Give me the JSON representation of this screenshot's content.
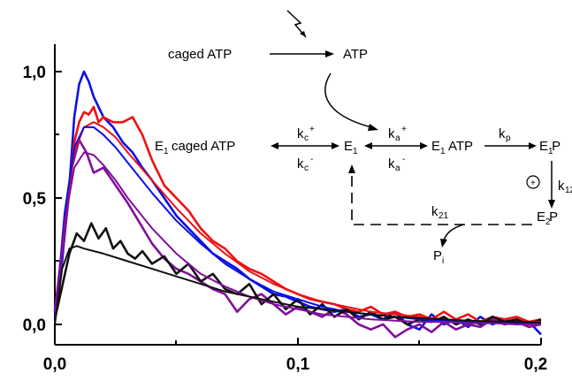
{
  "chart_data": {
    "type": "line",
    "x_ticks": [
      "0,0",
      "0,1",
      "0,2"
    ],
    "y_ticks": [
      "0,0",
      "0,5",
      "1,0"
    ],
    "xlim": [
      0.0,
      0.2
    ],
    "ylim": [
      0.0,
      1.0
    ],
    "grid": false,
    "series": [
      {
        "color": "#0a10e8",
        "kind": "trace",
        "points": [
          [
            0.0,
            0.06
          ],
          [
            0.003,
            0.25
          ],
          [
            0.006,
            0.55
          ],
          [
            0.008,
            0.82
          ],
          [
            0.01,
            0.95
          ],
          [
            0.012,
            1.0
          ],
          [
            0.014,
            0.96
          ],
          [
            0.016,
            0.9
          ],
          [
            0.018,
            0.86
          ],
          [
            0.02,
            0.82
          ],
          [
            0.024,
            0.78
          ],
          [
            0.028,
            0.72
          ],
          [
            0.032,
            0.68
          ],
          [
            0.036,
            0.62
          ],
          [
            0.04,
            0.57
          ],
          [
            0.045,
            0.5
          ],
          [
            0.05,
            0.43
          ],
          [
            0.055,
            0.38
          ],
          [
            0.06,
            0.33
          ],
          [
            0.065,
            0.28
          ],
          [
            0.07,
            0.25
          ],
          [
            0.075,
            0.22
          ],
          [
            0.08,
            0.18
          ],
          [
            0.085,
            0.15
          ],
          [
            0.09,
            0.12
          ],
          [
            0.095,
            0.11
          ],
          [
            0.1,
            0.09
          ],
          [
            0.105,
            0.07
          ],
          [
            0.11,
            0.06
          ],
          [
            0.115,
            0.05
          ],
          [
            0.12,
            0.06
          ],
          [
            0.125,
            0.03
          ],
          [
            0.13,
            0.04
          ],
          [
            0.135,
            0.02
          ],
          [
            0.14,
            0.05
          ],
          [
            0.145,
            0.0
          ],
          [
            0.15,
            -0.02
          ],
          [
            0.155,
            0.04
          ],
          [
            0.16,
            0.0
          ],
          [
            0.165,
            0.02
          ],
          [
            0.17,
            -0.01
          ],
          [
            0.175,
            0.03
          ],
          [
            0.18,
            0.0
          ],
          [
            0.185,
            0.02
          ],
          [
            0.19,
            0.0
          ],
          [
            0.195,
            0.01
          ],
          [
            0.2,
            -0.04
          ]
        ]
      },
      {
        "color": "#ee1111",
        "kind": "trace",
        "points": [
          [
            0.0,
            0.05
          ],
          [
            0.003,
            0.3
          ],
          [
            0.006,
            0.55
          ],
          [
            0.008,
            0.72
          ],
          [
            0.01,
            0.8
          ],
          [
            0.012,
            0.84
          ],
          [
            0.014,
            0.83
          ],
          [
            0.016,
            0.86
          ],
          [
            0.018,
            0.8
          ],
          [
            0.02,
            0.82
          ],
          [
            0.024,
            0.8
          ],
          [
            0.028,
            0.8
          ],
          [
            0.032,
            0.82
          ],
          [
            0.036,
            0.75
          ],
          [
            0.04,
            0.65
          ],
          [
            0.045,
            0.55
          ],
          [
            0.05,
            0.5
          ],
          [
            0.055,
            0.45
          ],
          [
            0.06,
            0.38
          ],
          [
            0.065,
            0.33
          ],
          [
            0.07,
            0.3
          ],
          [
            0.075,
            0.25
          ],
          [
            0.08,
            0.22
          ],
          [
            0.085,
            0.2
          ],
          [
            0.09,
            0.17
          ],
          [
            0.095,
            0.14
          ],
          [
            0.1,
            0.12
          ],
          [
            0.105,
            0.1
          ],
          [
            0.11,
            0.09
          ],
          [
            0.115,
            0.08
          ],
          [
            0.12,
            0.06
          ],
          [
            0.125,
            0.05
          ],
          [
            0.13,
            0.07
          ],
          [
            0.135,
            0.04
          ],
          [
            0.14,
            0.05
          ],
          [
            0.145,
            0.03
          ],
          [
            0.15,
            0.04
          ],
          [
            0.155,
            0.02
          ],
          [
            0.16,
            0.05
          ],
          [
            0.165,
            0.02
          ],
          [
            0.17,
            0.04
          ],
          [
            0.175,
            0.01
          ],
          [
            0.18,
            0.03
          ],
          [
            0.185,
            0.02
          ],
          [
            0.19,
            0.03
          ],
          [
            0.195,
            0.01
          ],
          [
            0.2,
            0.02
          ]
        ]
      },
      {
        "color": "#800f9c",
        "kind": "trace",
        "points": [
          [
            0.0,
            0.05
          ],
          [
            0.004,
            0.35
          ],
          [
            0.007,
            0.62
          ],
          [
            0.01,
            0.73
          ],
          [
            0.013,
            0.68
          ],
          [
            0.016,
            0.6
          ],
          [
            0.02,
            0.62
          ],
          [
            0.025,
            0.55
          ],
          [
            0.03,
            0.48
          ],
          [
            0.035,
            0.4
          ],
          [
            0.04,
            0.32
          ],
          [
            0.045,
            0.26
          ],
          [
            0.05,
            0.22
          ],
          [
            0.055,
            0.2
          ],
          [
            0.06,
            0.17
          ],
          [
            0.065,
            0.14
          ],
          [
            0.07,
            0.12
          ],
          [
            0.075,
            0.05
          ],
          [
            0.08,
            0.1
          ],
          [
            0.085,
            0.12
          ],
          [
            0.09,
            0.08
          ],
          [
            0.095,
            0.04
          ],
          [
            0.1,
            0.07
          ],
          [
            0.105,
            0.05
          ],
          [
            0.11,
            0.03
          ],
          [
            0.115,
            0.06
          ],
          [
            0.12,
            0.04
          ],
          [
            0.125,
            0.0
          ],
          [
            0.13,
            -0.02
          ],
          [
            0.135,
            0.0
          ],
          [
            0.14,
            -0.05
          ],
          [
            0.145,
            -0.02
          ],
          [
            0.15,
            0.0
          ],
          [
            0.155,
            -0.03
          ],
          [
            0.16,
            0.01
          ],
          [
            0.165,
            -0.02
          ],
          [
            0.17,
            0.0
          ],
          [
            0.175,
            -0.01
          ],
          [
            0.18,
            0.02
          ],
          [
            0.185,
            0.0
          ],
          [
            0.19,
            0.01
          ],
          [
            0.195,
            -0.01
          ],
          [
            0.2,
            0.0
          ]
        ]
      },
      {
        "color": "#111111",
        "kind": "trace",
        "points": [
          [
            0.0,
            0.02
          ],
          [
            0.003,
            0.15
          ],
          [
            0.006,
            0.28
          ],
          [
            0.009,
            0.36
          ],
          [
            0.012,
            0.33
          ],
          [
            0.015,
            0.4
          ],
          [
            0.018,
            0.34
          ],
          [
            0.021,
            0.38
          ],
          [
            0.024,
            0.3
          ],
          [
            0.027,
            0.33
          ],
          [
            0.03,
            0.28
          ],
          [
            0.033,
            0.26
          ],
          [
            0.036,
            0.29
          ],
          [
            0.04,
            0.24
          ],
          [
            0.045,
            0.27
          ],
          [
            0.05,
            0.2
          ],
          [
            0.055,
            0.24
          ],
          [
            0.06,
            0.17
          ],
          [
            0.065,
            0.2
          ],
          [
            0.07,
            0.14
          ],
          [
            0.075,
            0.12
          ],
          [
            0.08,
            0.16
          ],
          [
            0.085,
            0.08
          ],
          [
            0.09,
            0.12
          ],
          [
            0.095,
            0.06
          ],
          [
            0.1,
            0.1
          ],
          [
            0.105,
            0.04
          ],
          [
            0.11,
            0.08
          ],
          [
            0.115,
            0.03
          ],
          [
            0.12,
            0.06
          ],
          [
            0.125,
            0.02
          ],
          [
            0.13,
            0.05
          ],
          [
            0.135,
            0.02
          ],
          [
            0.14,
            0.03
          ],
          [
            0.145,
            0.0
          ],
          [
            0.15,
            0.02
          ],
          [
            0.155,
            0.01
          ],
          [
            0.16,
            0.03
          ],
          [
            0.165,
            0.0
          ],
          [
            0.17,
            0.02
          ],
          [
            0.175,
            0.0
          ],
          [
            0.18,
            0.03
          ],
          [
            0.185,
            0.01
          ],
          [
            0.19,
            0.02
          ],
          [
            0.195,
            0.0
          ],
          [
            0.2,
            0.02
          ]
        ]
      },
      {
        "color": "#ee1111",
        "kind": "fit",
        "points": [
          [
            0.0,
            0.0
          ],
          [
            0.004,
            0.42
          ],
          [
            0.008,
            0.68
          ],
          [
            0.012,
            0.78
          ],
          [
            0.016,
            0.8
          ],
          [
            0.02,
            0.78
          ],
          [
            0.025,
            0.74
          ],
          [
            0.03,
            0.68
          ],
          [
            0.04,
            0.57
          ],
          [
            0.05,
            0.46
          ],
          [
            0.06,
            0.36
          ],
          [
            0.07,
            0.28
          ],
          [
            0.08,
            0.21
          ],
          [
            0.09,
            0.16
          ],
          [
            0.1,
            0.12
          ],
          [
            0.11,
            0.09
          ],
          [
            0.12,
            0.07
          ],
          [
            0.13,
            0.05
          ],
          [
            0.14,
            0.04
          ],
          [
            0.15,
            0.03
          ],
          [
            0.16,
            0.02
          ],
          [
            0.17,
            0.015
          ],
          [
            0.18,
            0.01
          ],
          [
            0.19,
            0.01
          ],
          [
            0.2,
            0.01
          ]
        ]
      },
      {
        "color": "#0a10e8",
        "kind": "fit",
        "points": [
          [
            0.0,
            0.0
          ],
          [
            0.004,
            0.44
          ],
          [
            0.008,
            0.7
          ],
          [
            0.012,
            0.78
          ],
          [
            0.016,
            0.78
          ],
          [
            0.02,
            0.75
          ],
          [
            0.025,
            0.7
          ],
          [
            0.03,
            0.64
          ],
          [
            0.04,
            0.52
          ],
          [
            0.05,
            0.41
          ],
          [
            0.06,
            0.32
          ],
          [
            0.07,
            0.24
          ],
          [
            0.08,
            0.18
          ],
          [
            0.09,
            0.13
          ],
          [
            0.1,
            0.1
          ],
          [
            0.11,
            0.07
          ],
          [
            0.12,
            0.05
          ],
          [
            0.13,
            0.04
          ],
          [
            0.14,
            0.03
          ],
          [
            0.15,
            0.02
          ],
          [
            0.16,
            0.015
          ],
          [
            0.17,
            0.01
          ],
          [
            0.18,
            0.01
          ],
          [
            0.19,
            0.005
          ],
          [
            0.2,
            0.005
          ]
        ]
      },
      {
        "color": "#800f9c",
        "kind": "fit",
        "points": [
          [
            0.0,
            0.0
          ],
          [
            0.004,
            0.4
          ],
          [
            0.008,
            0.62
          ],
          [
            0.012,
            0.68
          ],
          [
            0.016,
            0.67
          ],
          [
            0.02,
            0.63
          ],
          [
            0.025,
            0.57
          ],
          [
            0.03,
            0.5
          ],
          [
            0.04,
            0.38
          ],
          [
            0.05,
            0.28
          ],
          [
            0.06,
            0.2
          ],
          [
            0.07,
            0.15
          ],
          [
            0.08,
            0.11
          ],
          [
            0.09,
            0.08
          ],
          [
            0.1,
            0.06
          ],
          [
            0.11,
            0.04
          ],
          [
            0.12,
            0.03
          ],
          [
            0.13,
            0.02
          ],
          [
            0.14,
            0.015
          ],
          [
            0.15,
            0.01
          ],
          [
            0.16,
            0.01
          ],
          [
            0.17,
            0.005
          ],
          [
            0.18,
            0.005
          ],
          [
            0.19,
            0.0
          ],
          [
            0.2,
            0.0
          ]
        ]
      },
      {
        "color": "#111111",
        "kind": "fit",
        "points": [
          [
            0.0,
            0.0
          ],
          [
            0.003,
            0.22
          ],
          [
            0.006,
            0.3
          ],
          [
            0.009,
            0.31
          ],
          [
            0.012,
            0.3
          ],
          [
            0.02,
            0.28
          ],
          [
            0.03,
            0.25
          ],
          [
            0.04,
            0.22
          ],
          [
            0.05,
            0.19
          ],
          [
            0.06,
            0.16
          ],
          [
            0.07,
            0.13
          ],
          [
            0.08,
            0.11
          ],
          [
            0.09,
            0.09
          ],
          [
            0.1,
            0.07
          ],
          [
            0.11,
            0.06
          ],
          [
            0.12,
            0.05
          ],
          [
            0.13,
            0.04
          ],
          [
            0.14,
            0.03
          ],
          [
            0.15,
            0.025
          ],
          [
            0.16,
            0.02
          ],
          [
            0.17,
            0.015
          ],
          [
            0.18,
            0.012
          ],
          [
            0.19,
            0.01
          ],
          [
            0.2,
            0.008
          ]
        ]
      }
    ]
  },
  "scheme": {
    "caged_atp": "caged ATP",
    "atp": "ATP",
    "e1_caged_atp": "E caged ATP",
    "e1": "E",
    "e1_atp": "E ATP",
    "e1_p": "E P",
    "e2_p": "E P",
    "pi": "P",
    "sub_1": "1",
    "sub_2": "2",
    "sub_i": "i",
    "sub_c": "c",
    "sub_a": "a",
    "sub_p": "p",
    "sub_12": "12",
    "sub_21": "21",
    "k": "k",
    "plus": "+",
    "minus": "-",
    "circled_plus": "+"
  }
}
